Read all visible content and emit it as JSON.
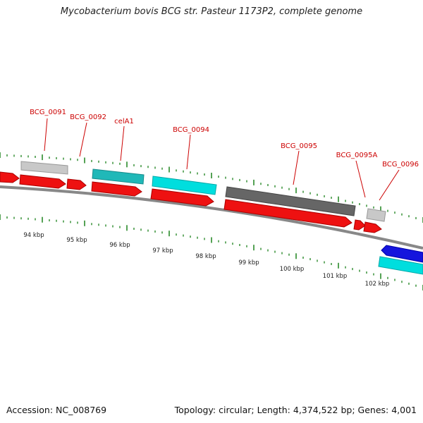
{
  "title": "Mycobacterium bovis BCG str. Pasteur 1173P2, complete genome",
  "footer": {
    "accession": "Accession: NC_008769",
    "summary": "Topology: circular; Length: 4,374,522 bp; Genes: 4,001"
  },
  "gene_labels": [
    "BCG_0091",
    "BCG_0092",
    "celA1",
    "BCG_0094",
    "BCG_0095",
    "BCG_0095A",
    "BCG_0096"
  ],
  "kbp_labels": [
    "94 kbp",
    "95 kbp",
    "96 kbp",
    "97 kbp",
    "98 kbp",
    "99 kbp",
    "100 kbp",
    "101 kbp",
    "102 kbp"
  ],
  "colors": {
    "label_red": "#cc0000",
    "cds_red": "#ee1111",
    "tick_green": "#2a8a2a",
    "backbone_gray": "#888888",
    "gene_cyan": "#00dede",
    "gene_teal": "#20b8b8",
    "gene_lightgray": "#c8c8c8",
    "gene_darkgray": "#666666",
    "gene_blue": "#1515dd"
  }
}
